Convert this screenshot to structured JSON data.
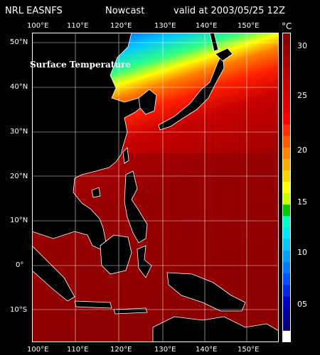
{
  "header": {
    "source": "NRL EASNFS",
    "product": "Nowcast",
    "valid": "valid at 2003/05/25 12Z"
  },
  "map": {
    "title": "Surface Temperature",
    "lon_labels": [
      "100°E",
      "110°E",
      "120°E",
      "130°E",
      "140°E",
      "150°E"
    ],
    "lat_labels": [
      "50°N",
      "40°N",
      "30°N",
      "20°N",
      "10°N",
      "0°",
      "10°S"
    ],
    "colors": {
      "land": "#000000",
      "coast": "#ffffff",
      "grid": "#ffffff"
    }
  },
  "colorbar": {
    "unit": "°C",
    "ticks": [
      "30",
      "25",
      "20",
      "15",
      "10",
      "05"
    ],
    "colors_top_to_bottom": [
      "#8b0000",
      "#9b0000",
      "#a80000",
      "#b80000",
      "#c80000",
      "#d80000",
      "#e80000",
      "#ff0000",
      "#ff3000",
      "#ff5a00",
      "#ff8200",
      "#ffaa00",
      "#ffd000",
      "#ffff00",
      "#c8ff00",
      "#00c800",
      "#00ffc8",
      "#00e6ff",
      "#00c8ff",
      "#00a0ff",
      "#0078ff",
      "#0050ff",
      "#0028e6",
      "#0000c8",
      "#0000a0",
      "#000080",
      "#ffffff"
    ]
  }
}
